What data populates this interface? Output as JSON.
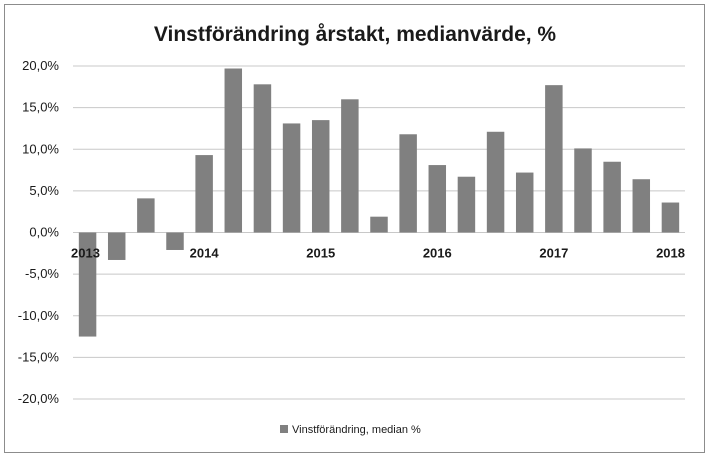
{
  "chart_data": {
    "type": "bar",
    "title": "Vinstförändring årstakt, medianvärde, %",
    "xlabel": "",
    "ylabel": "",
    "ylim": [
      -0.2,
      0.2
    ],
    "y_ticks": [
      {
        "value": 0.2,
        "label": "20,0%"
      },
      {
        "value": 0.15,
        "label": "15,0%"
      },
      {
        "value": 0.1,
        "label": "10,0%"
      },
      {
        "value": 0.05,
        "label": "5,0%"
      },
      {
        "value": 0.0,
        "label": "0,0%"
      },
      {
        "value": -0.05,
        "label": "-5,0%"
      },
      {
        "value": -0.1,
        "label": "-10,0%"
      },
      {
        "value": -0.15,
        "label": "-15,0%"
      },
      {
        "value": -0.2,
        "label": "-20,0%"
      }
    ],
    "x_tick_labels": [
      {
        "index": 0,
        "label": "2013"
      },
      {
        "index": 4,
        "label": "2014"
      },
      {
        "index": 8,
        "label": "2015"
      },
      {
        "index": 12,
        "label": "2016"
      },
      {
        "index": 16,
        "label": "2017"
      },
      {
        "index": 20,
        "label": "2018"
      }
    ],
    "grid": true,
    "legend_position": "bottom",
    "series": [
      {
        "name": "Vinstförändring, median %",
        "color": "#808080",
        "values": [
          -0.125,
          -0.033,
          0.041,
          -0.021,
          0.093,
          0.197,
          0.178,
          0.131,
          0.135,
          0.16,
          0.019,
          0.118,
          0.081,
          0.067,
          0.121,
          0.072,
          0.177,
          0.101,
          0.085,
          0.064,
          0.036
        ]
      }
    ]
  }
}
